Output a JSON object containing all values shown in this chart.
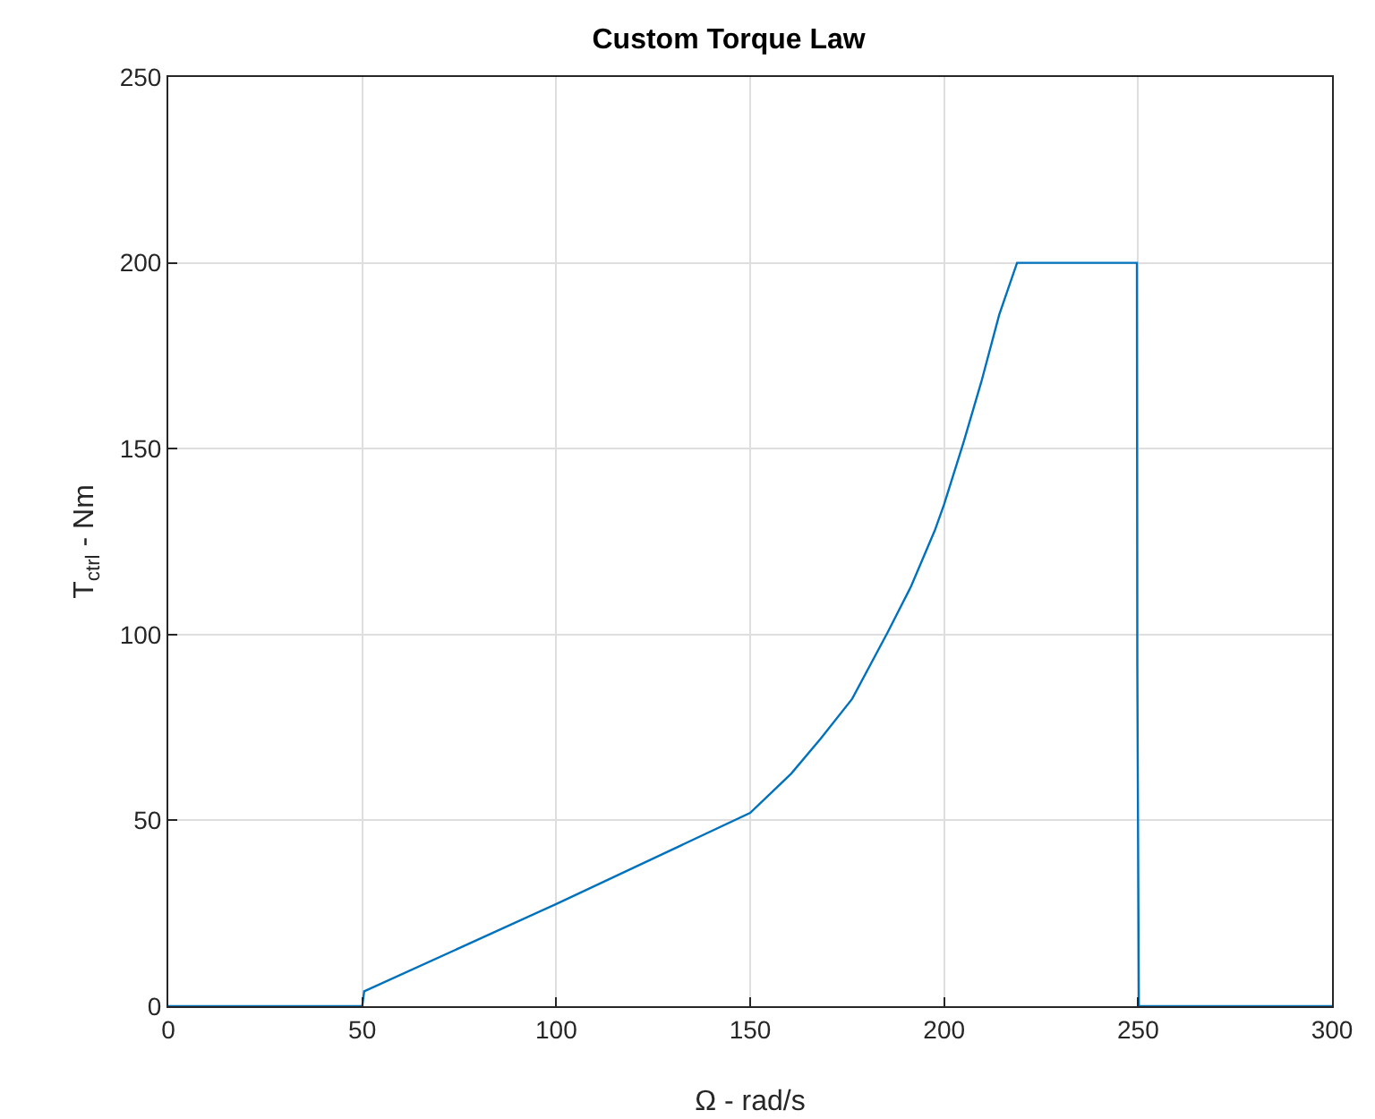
{
  "chart_data": {
    "type": "line",
    "title": "Custom Torque Law",
    "xlabel": "Ω - rad/s",
    "ylabel": "T$_{ctrl}$ - Nm",
    "x": [
      0,
      50,
      50.5,
      100,
      150,
      155,
      160.6,
      168.2,
      176.3,
      185.4,
      191.5,
      197.6,
      200,
      205.1,
      209.6,
      214.2,
      218.8,
      249.7,
      249.8,
      250.2,
      300
    ],
    "series": [
      {
        "color": "#0072bd",
        "values": [
          0,
          0,
          4,
          27.5,
          52,
          57,
          62.6,
          72,
          82.7,
          100.5,
          113,
          128,
          135,
          152,
          168,
          186,
          200,
          200,
          92,
          0,
          0
        ]
      }
    ],
    "xlim": [
      0,
      300
    ],
    "xticks": [
      0,
      50,
      100,
      150,
      200,
      250,
      300
    ],
    "ylim": [
      0,
      250
    ],
    "yticks": [
      0,
      50,
      100,
      150,
      200,
      250
    ],
    "grid": true,
    "marker": "none",
    "line_style": "solid"
  }
}
